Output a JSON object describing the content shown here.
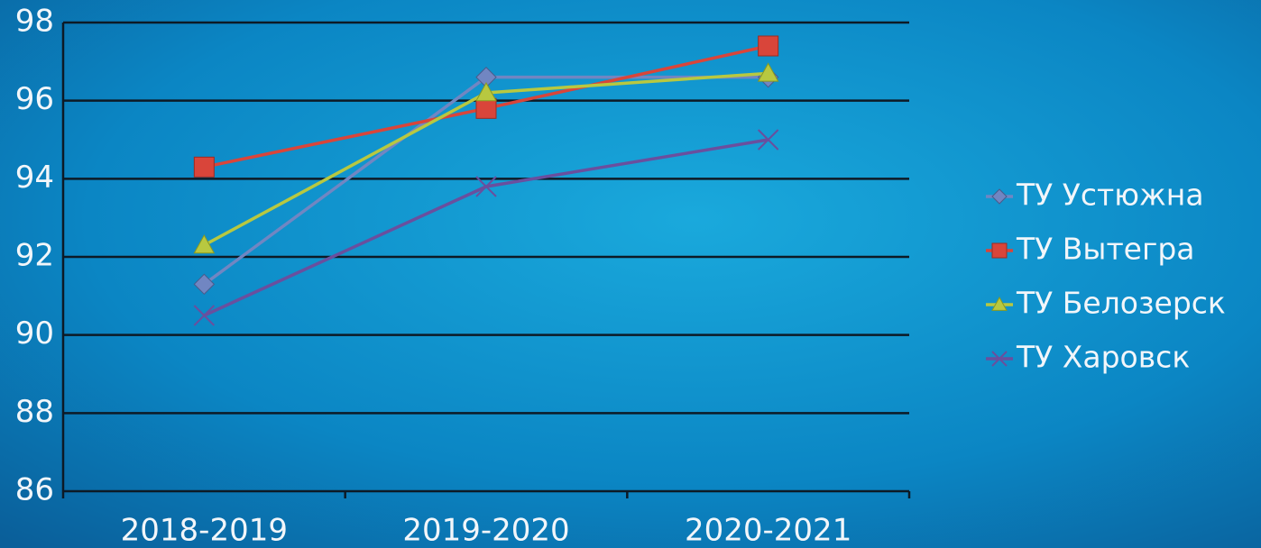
{
  "chart_data": {
    "type": "line",
    "categories": [
      "2018-2019",
      "2019-2020",
      "2020-2021"
    ],
    "series": [
      {
        "name": "ТУ Устюжна",
        "color": "#7186c2",
        "marker": "diamond",
        "values": [
          91.3,
          96.6,
          96.6
        ]
      },
      {
        "name": "ТУ Вытегра",
        "color": "#d9453a",
        "marker": "square",
        "values": [
          94.3,
          95.8,
          97.4
        ]
      },
      {
        "name": "ТУ Белозерск",
        "color": "#b8c840",
        "marker": "triangle",
        "values": [
          92.3,
          96.2,
          96.7
        ]
      },
      {
        "name": "ТУ Харовск",
        "color": "#6a4f9e",
        "marker": "x",
        "values": [
          90.5,
          93.8,
          95.0
        ]
      }
    ],
    "ylim": [
      86,
      98
    ],
    "yticks": [
      86,
      88,
      90,
      92,
      94,
      96,
      98
    ],
    "grid": true,
    "legend": "right"
  }
}
